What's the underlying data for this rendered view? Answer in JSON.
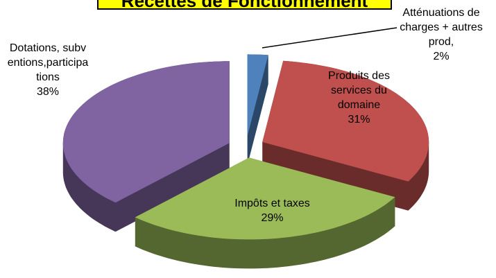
{
  "chart_data": {
    "type": "pie",
    "three_d": true,
    "exploded": true,
    "title": "Recettes de Fonctionnement",
    "categories": [
      "Atténuations de charges + autres prod,",
      "Produits des services du domaine",
      "Impôts et taxes",
      "Dotations, subventions,participations"
    ],
    "values": [
      2,
      31,
      29,
      38
    ],
    "value_labels": [
      "2%",
      "31%",
      "29%",
      "38%"
    ],
    "colors": [
      "#4f81bd",
      "#c0504d",
      "#9bbb59",
      "#8064a2"
    ]
  }
}
